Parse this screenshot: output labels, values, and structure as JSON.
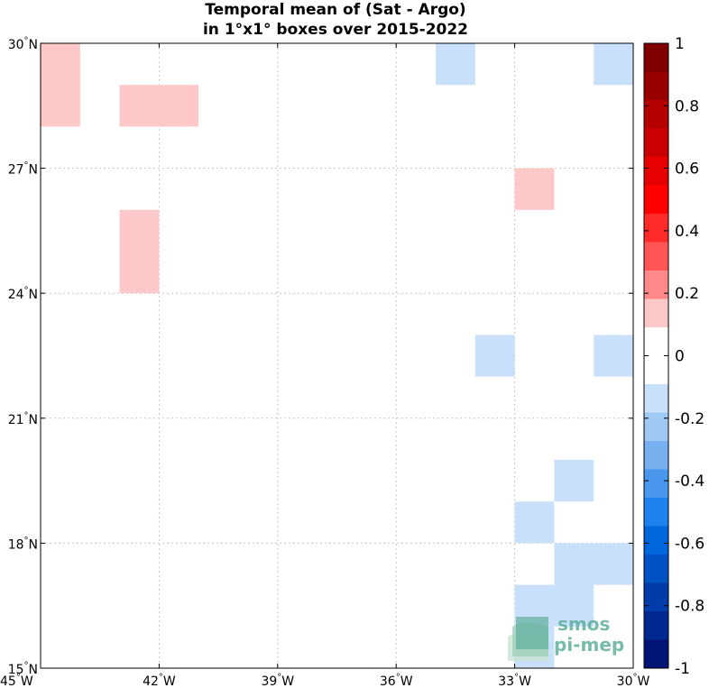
{
  "chart_data": {
    "type": "heatmap",
    "title": [
      "Temporal mean of (Sat - Argo)",
      "in 1°x1° boxes over 2015-2022"
    ],
    "xlim": [
      -45,
      -30
    ],
    "ylim": [
      15,
      30
    ],
    "grid": true,
    "x_ticks": [
      {
        "value": -45,
        "label": "45°W"
      },
      {
        "value": -42,
        "label": "42°W"
      },
      {
        "value": -39,
        "label": "39°W"
      },
      {
        "value": -36,
        "label": "36°W"
      },
      {
        "value": -33,
        "label": "33°W"
      },
      {
        "value": -30,
        "label": "30°W"
      }
    ],
    "y_ticks": [
      {
        "value": 15,
        "label": "15°N"
      },
      {
        "value": 18,
        "label": "18°N"
      },
      {
        "value": 21,
        "label": "21°N"
      },
      {
        "value": 24,
        "label": "24°N"
      },
      {
        "value": 27,
        "label": "27°N"
      },
      {
        "value": 30,
        "label": "30°N"
      }
    ],
    "cells": [
      {
        "lon0": -45,
        "lon1": -44,
        "lat0": 28,
        "lat1": 30,
        "value": 0.15
      },
      {
        "lon0": -43,
        "lon1": -41,
        "lat0": 28,
        "lat1": 29,
        "value": 0.15
      },
      {
        "lon0": -43,
        "lon1": -42,
        "lat0": 24,
        "lat1": 26,
        "value": 0.15
      },
      {
        "lon0": -33,
        "lon1": -32,
        "lat0": 26,
        "lat1": 27,
        "value": 0.15
      },
      {
        "lon0": -35,
        "lon1": -34,
        "lat0": 29,
        "lat1": 30,
        "value": -0.15
      },
      {
        "lon0": -31,
        "lon1": -30,
        "lat0": 29,
        "lat1": 30,
        "value": -0.15
      },
      {
        "lon0": -34,
        "lon1": -33,
        "lat0": 22,
        "lat1": 23,
        "value": -0.15
      },
      {
        "lon0": -31,
        "lon1": -30,
        "lat0": 22,
        "lat1": 23,
        "value": -0.15
      },
      {
        "lon0": -32,
        "lon1": -31,
        "lat0": 19,
        "lat1": 20,
        "value": -0.15
      },
      {
        "lon0": -33,
        "lon1": -32,
        "lat0": 18,
        "lat1": 19,
        "value": -0.15
      },
      {
        "lon0": -32,
        "lon1": -30,
        "lat0": 17,
        "lat1": 18,
        "value": -0.15
      },
      {
        "lon0": -33,
        "lon1": -31,
        "lat0": 16,
        "lat1": 17,
        "value": -0.15
      },
      {
        "lon0": -33,
        "lon1": -32,
        "lat0": 15,
        "lat1": 16,
        "value": -0.15
      }
    ],
    "colorbar": {
      "range": [
        -1,
        1
      ],
      "tick_values": [
        1,
        0.8,
        0.6,
        0.4,
        0.2,
        0,
        -0.2,
        -0.4,
        -0.6,
        -0.8,
        -1
      ],
      "tick_labels": [
        "1",
        "0.8",
        "0.6",
        "0.4",
        "0.2",
        "0",
        "-0.2",
        "-0.4",
        "-0.6",
        "-0.8",
        "-1"
      ],
      "colors_top_to_bottom": [
        "#800000",
        "#9a0000",
        "#b40000",
        "#cc0000",
        "#e60000",
        "#ff0000",
        "#ff2a2a",
        "#ff5555",
        "#ff8888",
        "#ffc8c8",
        "#ffffff",
        "#ffffff",
        "#c8e0fa",
        "#a0c8f5",
        "#78b0f0",
        "#4a98ee",
        "#1e82ee",
        "#0066dd",
        "#0052c4",
        "#003caa",
        "#002890",
        "#001478"
      ]
    },
    "cell_colors": {
      "positive_small": "#ffc8c8",
      "negative_small": "#c8e0fa"
    }
  },
  "logo": {
    "line1": "smos",
    "line2": "pi-mep"
  }
}
